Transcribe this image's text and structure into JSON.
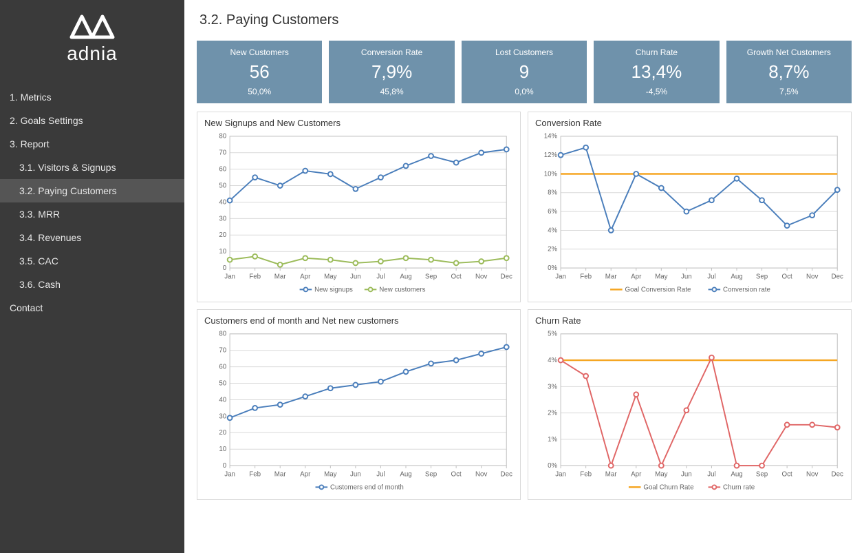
{
  "brand": "adnia",
  "nav": {
    "items": [
      {
        "label": "1. Metrics",
        "sub": false
      },
      {
        "label": "2. Goals Settings",
        "sub": false
      },
      {
        "label": "3. Report",
        "sub": false
      },
      {
        "label": "3.1. Visitors & Signups",
        "sub": true
      },
      {
        "label": "3.2. Paying Customers",
        "sub": true,
        "active": true
      },
      {
        "label": "3.3. MRR",
        "sub": true
      },
      {
        "label": "3.4. Revenues",
        "sub": true
      },
      {
        "label": "3.5. CAC",
        "sub": true
      },
      {
        "label": "3.6. Cash",
        "sub": true
      },
      {
        "label": "Contact",
        "sub": false
      }
    ]
  },
  "page_title": "3.2. Paying Customers",
  "kpis": [
    {
      "label": "New Customers",
      "value": "56",
      "sub": "50,0%"
    },
    {
      "label": "Conversion Rate",
      "value": "7,9%",
      "sub": "45,8%"
    },
    {
      "label": "Lost Customers",
      "value": "9",
      "sub": "0,0%"
    },
    {
      "label": "Churn Rate",
      "value": "13,4%",
      "sub": "-4,5%"
    },
    {
      "label": "Growth Net Customers",
      "value": "8,7%",
      "sub": "7,5%"
    }
  ],
  "kpi_style": {
    "bg": "#6f92ab",
    "fg": "#ffffff"
  },
  "months": [
    "Jan",
    "Feb",
    "Mar",
    "Apr",
    "May",
    "Jun",
    "Jul",
    "Aug",
    "Sep",
    "Oct",
    "Nov",
    "Dec"
  ],
  "chart_signups": {
    "title": "New Signups and New Customers",
    "ylim": [
      0,
      80
    ],
    "ytick_step": 10,
    "series": [
      {
        "name": "New signups",
        "color": "#4a7ebb",
        "values": [
          41,
          55,
          50,
          59,
          57,
          48,
          55,
          62,
          68,
          64,
          70,
          72
        ]
      },
      {
        "name": "New customers",
        "color": "#9bbb59",
        "values": [
          5,
          7,
          2,
          6,
          5,
          3,
          4,
          6,
          5,
          3,
          4,
          6
        ]
      }
    ],
    "legend": [
      "New signups",
      "New customers"
    ]
  },
  "chart_conversion": {
    "title": "Conversion Rate",
    "ylim": [
      0,
      14
    ],
    "ytick_step": 2,
    "ysuffix": "%",
    "goal": {
      "name": "Goal Conversion Rate",
      "color": "#f5a623",
      "value": 10
    },
    "series": [
      {
        "name": "Conversion rate",
        "color": "#4a7ebb",
        "values": [
          12.0,
          12.8,
          4.0,
          10.0,
          8.5,
          6.0,
          7.2,
          9.5,
          7.2,
          4.5,
          5.6,
          8.3
        ]
      }
    ],
    "legend": [
      "Goal Conversion Rate",
      "Conversion rate"
    ]
  },
  "chart_eom": {
    "title": "Customers end of month  and Net new customers",
    "ylim": [
      0,
      80
    ],
    "ytick_step": 10,
    "series": [
      {
        "name": "Customers end of month",
        "color": "#4a7ebb",
        "values": [
          29,
          35,
          37,
          42,
          47,
          49,
          51,
          57,
          62,
          64,
          68,
          72
        ]
      }
    ],
    "legend": [
      "Customers end of month"
    ]
  },
  "chart_churn": {
    "title": "Churn Rate",
    "ylim": [
      0,
      5
    ],
    "ytick_step": 1,
    "ysuffix": "%",
    "goal": {
      "name": "Goal Churn Rate",
      "color": "#f5a623",
      "value": 4
    },
    "series": [
      {
        "name": "Churn rate",
        "color": "#e06666",
        "values": [
          4.0,
          3.4,
          0.0,
          2.7,
          0.0,
          2.1,
          4.1,
          0.0,
          0.0,
          1.55,
          1.55,
          1.45
        ]
      }
    ],
    "legend": [
      "Goal Churn Rate",
      "Churn rate"
    ]
  },
  "chart_style": {
    "grid_color": "#d9d9d9",
    "axis_color": "#bfbfbf",
    "tick_fontsize": 10,
    "marker_radius": 3.5,
    "line_width": 2
  }
}
